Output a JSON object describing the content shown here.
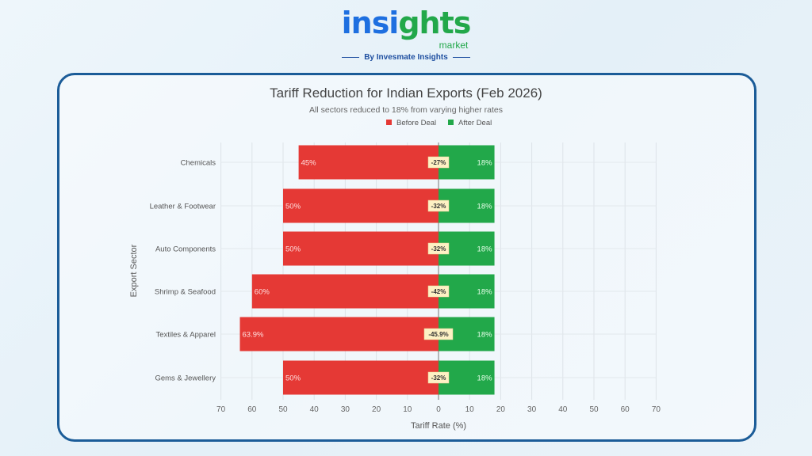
{
  "logo": {
    "part1": "insi",
    "part2": "ghts",
    "suffix": "market",
    "tagline": "By Invesmate Insights"
  },
  "chart_data": {
    "type": "bar",
    "orientation": "horizontal-diverging",
    "title": "Tariff Reduction for Indian Exports (Feb 2026)",
    "subtitle": "All sectors reduced to 18% from varying higher rates",
    "xlabel": "Tariff Rate (%)",
    "ylabel": "Export Sector",
    "xlim": [
      -70,
      70
    ],
    "xticks": [
      "70",
      "60",
      "50",
      "40",
      "30",
      "20",
      "10",
      "0",
      "10",
      "20",
      "30",
      "40",
      "50",
      "60",
      "70"
    ],
    "grid": true,
    "legend_placement": "top-right",
    "categories": [
      "Chemicals",
      "Leather & Footwear",
      "Auto Components",
      "Shrimp & Seafood",
      "Textiles & Apparel",
      "Gems & Jewellery"
    ],
    "series": [
      {
        "name": "Before Deal",
        "color": "#e53935",
        "values": [
          45,
          50,
          50,
          60,
          63.9,
          50
        ],
        "labels": [
          "45%",
          "50%",
          "50%",
          "60%",
          "63.9%",
          "50%"
        ]
      },
      {
        "name": "After Deal",
        "color": "#22a84a",
        "values": [
          18,
          18,
          18,
          18,
          18,
          18
        ],
        "labels": [
          "18%",
          "18%",
          "18%",
          "18%",
          "18%",
          "18%"
        ]
      }
    ],
    "reduction_labels": [
      "-27%",
      "-32%",
      "-32%",
      "-42%",
      "-45.9%",
      "-32%"
    ]
  }
}
